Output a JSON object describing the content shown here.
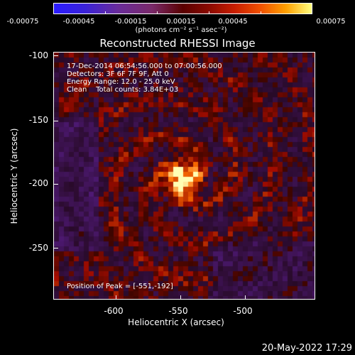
{
  "colorbar": {
    "tick_labels": [
      "-0.00075",
      "-0.00045",
      "-0.00015",
      "0.00015",
      "0.00045",
      "0.00075"
    ],
    "units": "(photons cm⁻² s⁻¹ asec⁻²)"
  },
  "title": "Reconstructed RHESSI Image",
  "annotations": {
    "line1": "17-Dec-2014 06:54:56.000 to 07:00:56.000",
    "line2": "Detectors: 3F 6F 7F 9F, Att 0",
    "line3": "Energy Range: 12.0 - 25.0 keV",
    "line4": "Clean    Total counts: 3.84E+03",
    "peak": "Position of Peak = [-551,-192]"
  },
  "axes": {
    "xlabel": "Heliocentric X (arcsec)",
    "ylabel": "Heliocentric Y (arcsec)",
    "x_ticks": [
      "-600",
      "-550",
      "-500"
    ],
    "y_ticks": [
      "-100",
      "-150",
      "-200",
      "-250"
    ],
    "x_range": [
      -648,
      -447
    ],
    "y_range": [
      -97,
      -287
    ]
  },
  "peak_position": [
    -551,
    -192
  ],
  "footer": {
    "date": "20-May-2022 17:29"
  }
}
